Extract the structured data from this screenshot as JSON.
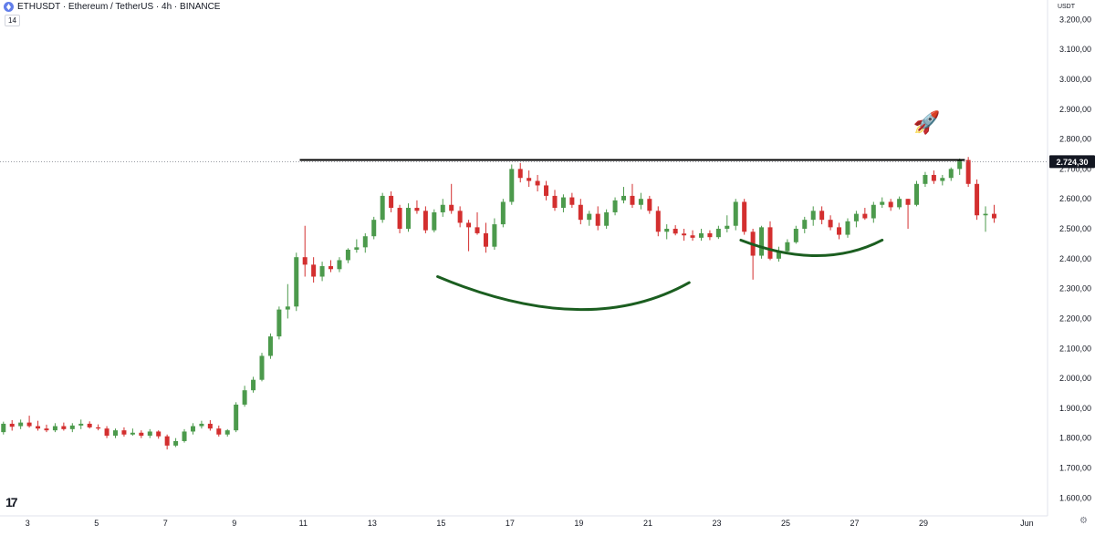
{
  "header": {
    "title": "ETHUSDT · Ethereum / TetherUS · 4h · BINANCE",
    "indicator_label": "14",
    "currency_label": "USDT",
    "logo_text": "17",
    "rocket_emoji": "🚀"
  },
  "colors": {
    "up": "#4c9a4c",
    "down": "#d32f2f",
    "resistance_line": "#000000",
    "arc": "#1b5e20",
    "price_tag_bg": "#131722",
    "axis_text": "#131722"
  },
  "icons": {
    "settings": "gear-icon",
    "logo": "tradingview-logo-icon",
    "symbol": "ethereum-icon"
  },
  "chart_data": {
    "type": "candlestick",
    "symbol": "ETHUSDT",
    "interval": "4h",
    "y_axis": {
      "ticks": [
        "3.200,00",
        "3.100,00",
        "3.000,00",
        "2.900,00",
        "2.800,00",
        "2.700,00",
        "2.600,00",
        "2.500,00",
        "2.400,00",
        "2.300,00",
        "2.200,00",
        "2.100,00",
        "2.000,00",
        "1.900,00",
        "1.800,00",
        "1.700,00",
        "1.600,00"
      ],
      "range": [
        1540,
        3265
      ]
    },
    "x_axis": {
      "ticks": [
        "3",
        "5",
        "7",
        "9",
        "11",
        "13",
        "15",
        "17",
        "19",
        "21",
        "23",
        "25",
        "27",
        "29",
        "Jun"
      ],
      "date_range_days": [
        2.2,
        32.6
      ]
    },
    "current_price": {
      "value": 2724.3,
      "label": "2.724,30"
    },
    "resistance": {
      "price": 2730,
      "from_day": 10.9,
      "to_day": 30.2
    },
    "arcs": [
      {
        "name": "left_shoulder_cup",
        "start": [
          14.9,
          2340
        ],
        "bottom": [
          18.9,
          2230
        ],
        "end": [
          22.2,
          2320
        ]
      },
      {
        "name": "right_cup",
        "start": [
          23.7,
          2462
        ],
        "bottom": [
          25.9,
          2410
        ],
        "end": [
          27.8,
          2462
        ]
      }
    ],
    "candles": [
      [
        2.3,
        1820,
        1855,
        1812,
        1848
      ],
      [
        2.55,
        1848,
        1860,
        1825,
        1838
      ],
      [
        2.8,
        1840,
        1862,
        1830,
        1852
      ],
      [
        3.05,
        1852,
        1875,
        1835,
        1840
      ],
      [
        3.3,
        1840,
        1858,
        1825,
        1832
      ],
      [
        3.55,
        1832,
        1845,
        1820,
        1826
      ],
      [
        3.8,
        1826,
        1850,
        1820,
        1840
      ],
      [
        4.05,
        1840,
        1852,
        1825,
        1830
      ],
      [
        4.3,
        1830,
        1850,
        1820,
        1842
      ],
      [
        4.55,
        1842,
        1862,
        1830,
        1848
      ],
      [
        4.8,
        1848,
        1856,
        1832,
        1836
      ],
      [
        5.05,
        1836,
        1846,
        1826,
        1832
      ],
      [
        5.3,
        1832,
        1840,
        1800,
        1808
      ],
      [
        5.55,
        1808,
        1832,
        1800,
        1826
      ],
      [
        5.8,
        1826,
        1836,
        1805,
        1812
      ],
      [
        6.05,
        1812,
        1832,
        1808,
        1818
      ],
      [
        6.3,
        1818,
        1826,
        1800,
        1808
      ],
      [
        6.55,
        1808,
        1830,
        1800,
        1822
      ],
      [
        6.8,
        1822,
        1826,
        1798,
        1806
      ],
      [
        7.05,
        1806,
        1812,
        1762,
        1775
      ],
      [
        7.3,
        1775,
        1800,
        1770,
        1790
      ],
      [
        7.55,
        1790,
        1830,
        1785,
        1822
      ],
      [
        7.8,
        1822,
        1850,
        1812,
        1840
      ],
      [
        8.05,
        1840,
        1858,
        1832,
        1848
      ],
      [
        8.3,
        1848,
        1860,
        1825,
        1832
      ],
      [
        8.55,
        1832,
        1842,
        1805,
        1812
      ],
      [
        8.8,
        1812,
        1830,
        1805,
        1826
      ],
      [
        9.05,
        1826,
        1920,
        1820,
        1912
      ],
      [
        9.3,
        1912,
        1975,
        1905,
        1960
      ],
      [
        9.55,
        1960,
        2005,
        1952,
        1995
      ],
      [
        9.8,
        1995,
        2085,
        1990,
        2075
      ],
      [
        10.05,
        2075,
        2150,
        2065,
        2140
      ],
      [
        10.3,
        2140,
        2240,
        2130,
        2230
      ],
      [
        10.55,
        2230,
        2315,
        2200,
        2240
      ],
      [
        10.8,
        2240,
        2420,
        2225,
        2405
      ],
      [
        11.05,
        2405,
        2510,
        2340,
        2380
      ],
      [
        11.3,
        2380,
        2405,
        2320,
        2340
      ],
      [
        11.55,
        2340,
        2390,
        2325,
        2375
      ],
      [
        11.8,
        2375,
        2395,
        2355,
        2365
      ],
      [
        12.05,
        2365,
        2405,
        2355,
        2395
      ],
      [
        12.3,
        2395,
        2435,
        2385,
        2430
      ],
      [
        12.55,
        2430,
        2465,
        2420,
        2438
      ],
      [
        12.8,
        2438,
        2485,
        2420,
        2475
      ],
      [
        13.05,
        2475,
        2540,
        2465,
        2530
      ],
      [
        13.3,
        2530,
        2620,
        2520,
        2610
      ],
      [
        13.55,
        2610,
        2625,
        2555,
        2570
      ],
      [
        13.8,
        2570,
        2580,
        2485,
        2500
      ],
      [
        14.05,
        2500,
        2585,
        2490,
        2570
      ],
      [
        14.3,
        2570,
        2595,
        2550,
        2560
      ],
      [
        14.55,
        2560,
        2575,
        2485,
        2495
      ],
      [
        14.8,
        2495,
        2565,
        2488,
        2555
      ],
      [
        15.05,
        2555,
        2600,
        2540,
        2580
      ],
      [
        15.3,
        2580,
        2650,
        2550,
        2560
      ],
      [
        15.55,
        2560,
        2575,
        2505,
        2520
      ],
      [
        15.8,
        2520,
        2530,
        2425,
        2505
      ],
      [
        16.05,
        2505,
        2555,
        2480,
        2485
      ],
      [
        16.3,
        2485,
        2520,
        2420,
        2440
      ],
      [
        16.55,
        2440,
        2535,
        2430,
        2515
      ],
      [
        16.8,
        2515,
        2600,
        2505,
        2590
      ],
      [
        17.05,
        2590,
        2715,
        2580,
        2700
      ],
      [
        17.3,
        2700,
        2720,
        2655,
        2670
      ],
      [
        17.55,
        2670,
        2695,
        2640,
        2660
      ],
      [
        17.8,
        2660,
        2680,
        2625,
        2645
      ],
      [
        18.05,
        2645,
        2660,
        2595,
        2610
      ],
      [
        18.3,
        2610,
        2630,
        2560,
        2570
      ],
      [
        18.55,
        2570,
        2615,
        2555,
        2605
      ],
      [
        18.8,
        2605,
        2620,
        2570,
        2580
      ],
      [
        19.05,
        2580,
        2600,
        2515,
        2530
      ],
      [
        19.3,
        2530,
        2560,
        2510,
        2550
      ],
      [
        19.55,
        2550,
        2575,
        2495,
        2510
      ],
      [
        19.8,
        2510,
        2565,
        2500,
        2555
      ],
      [
        20.05,
        2555,
        2605,
        2545,
        2595
      ],
      [
        20.3,
        2595,
        2640,
        2585,
        2610
      ],
      [
        20.55,
        2610,
        2650,
        2570,
        2580
      ],
      [
        20.8,
        2580,
        2620,
        2565,
        2600
      ],
      [
        21.05,
        2600,
        2610,
        2550,
        2560
      ],
      [
        21.3,
        2560,
        2575,
        2475,
        2490
      ],
      [
        21.55,
        2490,
        2515,
        2465,
        2500
      ],
      [
        21.8,
        2500,
        2512,
        2478,
        2484
      ],
      [
        22.05,
        2484,
        2500,
        2460,
        2478
      ],
      [
        22.3,
        2478,
        2495,
        2460,
        2470
      ],
      [
        22.55,
        2470,
        2500,
        2460,
        2485
      ],
      [
        22.8,
        2485,
        2495,
        2462,
        2472
      ],
      [
        23.05,
        2472,
        2510,
        2466,
        2500
      ],
      [
        23.3,
        2500,
        2545,
        2488,
        2510
      ],
      [
        23.55,
        2510,
        2600,
        2495,
        2590
      ],
      [
        23.8,
        2590,
        2600,
        2480,
        2490
      ],
      [
        24.05,
        2490,
        2500,
        2330,
        2410
      ],
      [
        24.3,
        2410,
        2510,
        2400,
        2505
      ],
      [
        24.55,
        2505,
        2525,
        2395,
        2400
      ],
      [
        24.8,
        2400,
        2440,
        2390,
        2425
      ],
      [
        25.05,
        2425,
        2465,
        2415,
        2455
      ],
      [
        25.3,
        2455,
        2510,
        2450,
        2500
      ],
      [
        25.55,
        2500,
        2540,
        2485,
        2530
      ],
      [
        25.8,
        2530,
        2575,
        2510,
        2560
      ],
      [
        26.05,
        2560,
        2575,
        2515,
        2530
      ],
      [
        26.3,
        2530,
        2545,
        2495,
        2505
      ],
      [
        26.55,
        2505,
        2520,
        2465,
        2480
      ],
      [
        26.8,
        2480,
        2535,
        2470,
        2525
      ],
      [
        27.05,
        2525,
        2560,
        2505,
        2550
      ],
      [
        27.3,
        2550,
        2570,
        2530,
        2535
      ],
      [
        27.55,
        2535,
        2590,
        2520,
        2580
      ],
      [
        27.8,
        2580,
        2605,
        2570,
        2590
      ],
      [
        28.05,
        2590,
        2600,
        2560,
        2572
      ],
      [
        28.3,
        2572,
        2608,
        2565,
        2600
      ],
      [
        28.55,
        2600,
        2600,
        2500,
        2580
      ],
      [
        28.8,
        2580,
        2660,
        2575,
        2650
      ],
      [
        29.05,
        2650,
        2690,
        2640,
        2680
      ],
      [
        29.3,
        2680,
        2695,
        2650,
        2660
      ],
      [
        29.55,
        2660,
        2680,
        2645,
        2670
      ],
      [
        29.8,
        2670,
        2705,
        2660,
        2700
      ],
      [
        30.05,
        2700,
        2735,
        2680,
        2730
      ],
      [
        30.3,
        2730,
        2740,
        2640,
        2650
      ],
      [
        30.55,
        2650,
        2665,
        2530,
        2545
      ],
      [
        30.8,
        2545,
        2575,
        2490,
        2550
      ],
      [
        31.05,
        2550,
        2580,
        2520,
        2535
      ]
    ]
  }
}
